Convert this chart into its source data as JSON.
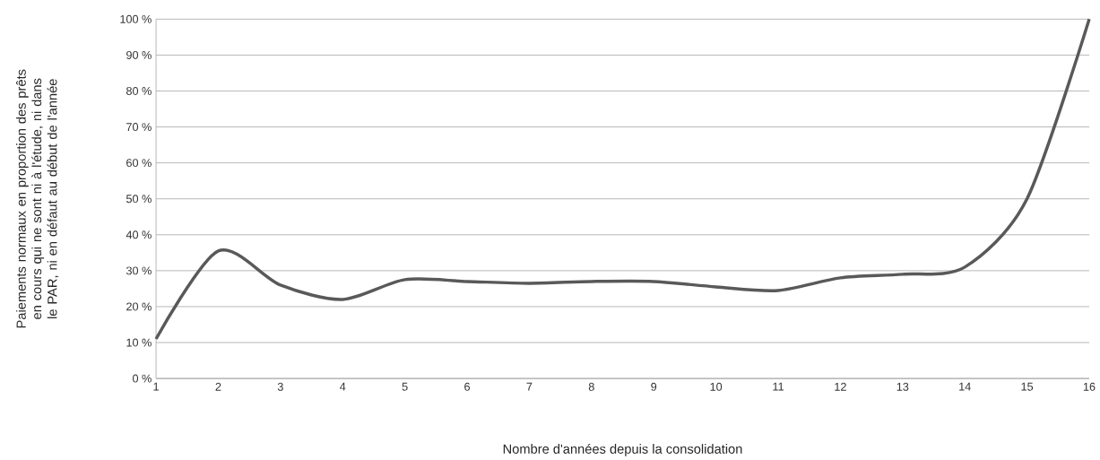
{
  "chart_data": {
    "type": "line",
    "xlabel": "Nombre d'années depuis la consolidation",
    "ylabel": "Paiements normaux en proportion des prêts en cours qui ne sont ni à l'étude, ni dans le PAR, ni en défaut au début de l'année",
    "x": [
      1,
      2,
      3,
      4,
      5,
      6,
      7,
      8,
      9,
      10,
      11,
      12,
      13,
      14,
      15,
      16
    ],
    "series": [
      {
        "color": "#595959",
        "values": [
          11,
          35.5,
          26,
          22,
          27.5,
          27,
          26.5,
          27,
          27,
          25.5,
          24.5,
          28,
          29,
          31,
          50,
          100
        ]
      }
    ],
    "xlim": [
      1,
      16
    ],
    "xticks": [
      1,
      2,
      3,
      4,
      5,
      6,
      7,
      8,
      9,
      10,
      11,
      12,
      13,
      14,
      15,
      16
    ],
    "ylim": [
      0,
      100
    ],
    "yticks": [
      {
        "value": 0,
        "label": "0 %"
      },
      {
        "value": 10,
        "label": "10 %"
      },
      {
        "value": 20,
        "label": "20 %"
      },
      {
        "value": 30,
        "label": "30 %"
      },
      {
        "value": 40,
        "label": "40 %"
      },
      {
        "value": 50,
        "label": "50 %"
      },
      {
        "value": 60,
        "label": "60 %"
      },
      {
        "value": 70,
        "label": "70 %"
      },
      {
        "value": 80,
        "label": "80 %"
      },
      {
        "value": 90,
        "label": "90 %"
      },
      {
        "value": 100,
        "label": "100 %"
      }
    ],
    "grid": "y",
    "marker": "none",
    "line_style": "solid"
  }
}
